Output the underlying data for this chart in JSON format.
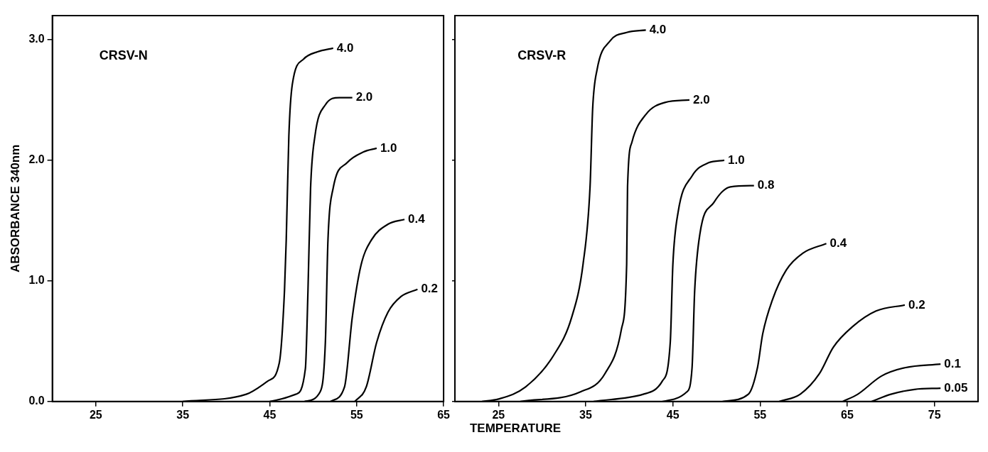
{
  "chart_data": [
    {
      "type": "line",
      "title": "CRSV-N",
      "xlabel": "TEMPERATURE",
      "ylabel": "ABSORBANCE 340nm",
      "xlim": [
        20,
        65
      ],
      "xticks": [
        25,
        35,
        45,
        55,
        65
      ],
      "ylim": [
        0,
        3.2
      ],
      "yticks": [
        {
          "value": 0,
          "label": "0.0"
        },
        {
          "value": 1,
          "label": "1.0"
        },
        {
          "value": 2,
          "label": "2.0"
        },
        {
          "value": 3,
          "label": "3.0"
        }
      ],
      "grid": false,
      "legend": false,
      "marker": "none",
      "line_style": "solid",
      "series": [
        {
          "name": "4.0",
          "color": "#000000",
          "x": [
            35,
            42.3,
            44.8,
            46.1,
            46.7,
            46.9,
            47.2,
            47.6,
            48.9,
            50.5,
            52.3
          ],
          "values": [
            0,
            0.06,
            0.17,
            0.32,
            0.92,
            1.34,
            2.2,
            2.63,
            2.84,
            2.9,
            2.93
          ]
        },
        {
          "name": "2.0",
          "color": "#000000",
          "x": [
            45,
            48.0,
            49.1,
            49.4,
            49.7,
            50.2,
            51.4,
            53.0,
            54.5
          ],
          "values": [
            0,
            0.06,
            0.27,
            0.92,
            1.77,
            2.2,
            2.46,
            2.52,
            2.52
          ]
        },
        {
          "name": "1.0",
          "color": "#000000",
          "x": [
            49.0,
            50.8,
            51.4,
            51.7,
            52.3,
            53.9,
            55.8,
            57.3
          ],
          "values": [
            0,
            0.08,
            0.49,
            1.34,
            1.77,
            1.98,
            2.07,
            2.1
          ]
        },
        {
          "name": "0.4",
          "color": "#000000",
          "x": [
            52.0,
            53.6,
            54.5,
            55.5,
            56.7,
            58.6,
            60.5
          ],
          "values": [
            0,
            0.12,
            0.7,
            1.13,
            1.34,
            1.47,
            1.51
          ]
        },
        {
          "name": "0.2",
          "color": "#000000",
          "x": [
            54.8,
            56.1,
            57.3,
            58.6,
            60.1,
            62.0
          ],
          "values": [
            0,
            0.12,
            0.49,
            0.74,
            0.87,
            0.93
          ]
        }
      ]
    },
    {
      "type": "line",
      "title": "CRSV-R",
      "xlim": [
        20,
        80
      ],
      "xticks": [
        25,
        35,
        45,
        55,
        65,
        75
      ],
      "ylim": [
        0,
        3.2
      ],
      "yticks": [
        0,
        1,
        2,
        3
      ],
      "tick_labels": "x",
      "grid": false,
      "legend": false,
      "marker": "none",
      "line_style": "solid",
      "series": [
        {
          "name": "4.0",
          "color": "#000000",
          "x": [
            23.1,
            25,
            28.1,
            31.3,
            33.4,
            34.7,
            35.5,
            35.8,
            36.3,
            37.8,
            39.7,
            41.9
          ],
          "values": [
            0,
            0.02,
            0.12,
            0.38,
            0.7,
            1.14,
            1.78,
            2.43,
            2.75,
            2.99,
            3.06,
            3.08
          ]
        },
        {
          "name": "2.0",
          "color": "#000000",
          "x": [
            27.5,
            34.4,
            37.2,
            39.1,
            39.7,
            39.8,
            40.3,
            41.9,
            44.1,
            46.9
          ],
          "values": [
            0,
            0.08,
            0.23,
            0.6,
            1.14,
            1.78,
            2.15,
            2.38,
            2.48,
            2.5
          ]
        },
        {
          "name": "1.0",
          "color": "#000000",
          "x": [
            35.9,
            41.6,
            43.8,
            44.7,
            45.0,
            45.6,
            47.2,
            49.1,
            50.9
          ],
          "values": [
            0,
            0.06,
            0.17,
            0.49,
            1.14,
            1.57,
            1.87,
            1.98,
            2.0
          ]
        },
        {
          "name": "0.8",
          "color": "#000000",
          "x": [
            43.8,
            46.6,
            47.2,
            47.5,
            48.1,
            49.7,
            51.6,
            54.3
          ],
          "values": [
            0,
            0.08,
            0.28,
            0.92,
            1.39,
            1.65,
            1.78,
            1.79
          ]
        },
        {
          "name": "0.4",
          "color": "#000000",
          "x": [
            50.7,
            53.65,
            54.7,
            55.3,
            56.4,
            58.0,
            59.9,
            62.6
          ],
          "values": [
            0,
            0.06,
            0.28,
            0.56,
            0.84,
            1.09,
            1.23,
            1.31
          ]
        },
        {
          "name": "0.2",
          "color": "#000000",
          "x": [
            57.2,
            59.6,
            61.8,
            63.4,
            65.6,
            68.3,
            71.6
          ],
          "values": [
            0,
            0.06,
            0.23,
            0.45,
            0.62,
            0.75,
            0.8
          ]
        },
        {
          "name": "0.1",
          "color": "#000000",
          "x": [
            64.5,
            66.2,
            68.9,
            71.6,
            75.7
          ],
          "values": [
            0,
            0.06,
            0.21,
            0.28,
            0.31
          ]
        },
        {
          "name": "0.05",
          "color": "#000000",
          "x": [
            67.8,
            70.0,
            72.7,
            75.7
          ],
          "values": [
            0,
            0.06,
            0.1,
            0.11
          ]
        }
      ]
    }
  ]
}
